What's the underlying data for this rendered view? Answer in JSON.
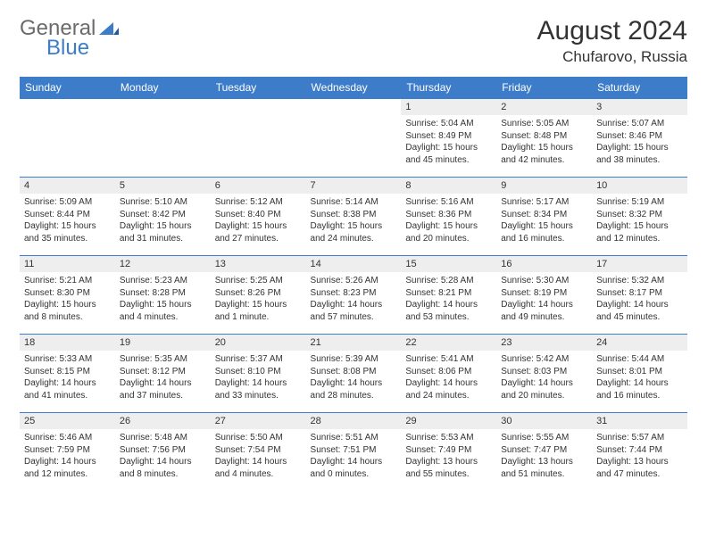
{
  "brand": {
    "part1": "General",
    "part2": "Blue"
  },
  "title": "August 2024",
  "location": "Chufarovo, Russia",
  "colors": {
    "accent": "#3d7cc9",
    "header_text": "#ffffff",
    "daynum_bg": "#eeeeee",
    "text": "#333333",
    "logo_gray": "#6b6b6b"
  },
  "weekdays": [
    "Sunday",
    "Monday",
    "Tuesday",
    "Wednesday",
    "Thursday",
    "Friday",
    "Saturday"
  ],
  "weeks": [
    [
      {
        "blank": true
      },
      {
        "blank": true
      },
      {
        "blank": true
      },
      {
        "blank": true
      },
      {
        "day": "1",
        "sunrise": "Sunrise: 5:04 AM",
        "sunset": "Sunset: 8:49 PM",
        "daylight": "Daylight: 15 hours and 45 minutes."
      },
      {
        "day": "2",
        "sunrise": "Sunrise: 5:05 AM",
        "sunset": "Sunset: 8:48 PM",
        "daylight": "Daylight: 15 hours and 42 minutes."
      },
      {
        "day": "3",
        "sunrise": "Sunrise: 5:07 AM",
        "sunset": "Sunset: 8:46 PM",
        "daylight": "Daylight: 15 hours and 38 minutes."
      }
    ],
    [
      {
        "day": "4",
        "sunrise": "Sunrise: 5:09 AM",
        "sunset": "Sunset: 8:44 PM",
        "daylight": "Daylight: 15 hours and 35 minutes."
      },
      {
        "day": "5",
        "sunrise": "Sunrise: 5:10 AM",
        "sunset": "Sunset: 8:42 PM",
        "daylight": "Daylight: 15 hours and 31 minutes."
      },
      {
        "day": "6",
        "sunrise": "Sunrise: 5:12 AM",
        "sunset": "Sunset: 8:40 PM",
        "daylight": "Daylight: 15 hours and 27 minutes."
      },
      {
        "day": "7",
        "sunrise": "Sunrise: 5:14 AM",
        "sunset": "Sunset: 8:38 PM",
        "daylight": "Daylight: 15 hours and 24 minutes."
      },
      {
        "day": "8",
        "sunrise": "Sunrise: 5:16 AM",
        "sunset": "Sunset: 8:36 PM",
        "daylight": "Daylight: 15 hours and 20 minutes."
      },
      {
        "day": "9",
        "sunrise": "Sunrise: 5:17 AM",
        "sunset": "Sunset: 8:34 PM",
        "daylight": "Daylight: 15 hours and 16 minutes."
      },
      {
        "day": "10",
        "sunrise": "Sunrise: 5:19 AM",
        "sunset": "Sunset: 8:32 PM",
        "daylight": "Daylight: 15 hours and 12 minutes."
      }
    ],
    [
      {
        "day": "11",
        "sunrise": "Sunrise: 5:21 AM",
        "sunset": "Sunset: 8:30 PM",
        "daylight": "Daylight: 15 hours and 8 minutes."
      },
      {
        "day": "12",
        "sunrise": "Sunrise: 5:23 AM",
        "sunset": "Sunset: 8:28 PM",
        "daylight": "Daylight: 15 hours and 4 minutes."
      },
      {
        "day": "13",
        "sunrise": "Sunrise: 5:25 AM",
        "sunset": "Sunset: 8:26 PM",
        "daylight": "Daylight: 15 hours and 1 minute."
      },
      {
        "day": "14",
        "sunrise": "Sunrise: 5:26 AM",
        "sunset": "Sunset: 8:23 PM",
        "daylight": "Daylight: 14 hours and 57 minutes."
      },
      {
        "day": "15",
        "sunrise": "Sunrise: 5:28 AM",
        "sunset": "Sunset: 8:21 PM",
        "daylight": "Daylight: 14 hours and 53 minutes."
      },
      {
        "day": "16",
        "sunrise": "Sunrise: 5:30 AM",
        "sunset": "Sunset: 8:19 PM",
        "daylight": "Daylight: 14 hours and 49 minutes."
      },
      {
        "day": "17",
        "sunrise": "Sunrise: 5:32 AM",
        "sunset": "Sunset: 8:17 PM",
        "daylight": "Daylight: 14 hours and 45 minutes."
      }
    ],
    [
      {
        "day": "18",
        "sunrise": "Sunrise: 5:33 AM",
        "sunset": "Sunset: 8:15 PM",
        "daylight": "Daylight: 14 hours and 41 minutes."
      },
      {
        "day": "19",
        "sunrise": "Sunrise: 5:35 AM",
        "sunset": "Sunset: 8:12 PM",
        "daylight": "Daylight: 14 hours and 37 minutes."
      },
      {
        "day": "20",
        "sunrise": "Sunrise: 5:37 AM",
        "sunset": "Sunset: 8:10 PM",
        "daylight": "Daylight: 14 hours and 33 minutes."
      },
      {
        "day": "21",
        "sunrise": "Sunrise: 5:39 AM",
        "sunset": "Sunset: 8:08 PM",
        "daylight": "Daylight: 14 hours and 28 minutes."
      },
      {
        "day": "22",
        "sunrise": "Sunrise: 5:41 AM",
        "sunset": "Sunset: 8:06 PM",
        "daylight": "Daylight: 14 hours and 24 minutes."
      },
      {
        "day": "23",
        "sunrise": "Sunrise: 5:42 AM",
        "sunset": "Sunset: 8:03 PM",
        "daylight": "Daylight: 14 hours and 20 minutes."
      },
      {
        "day": "24",
        "sunrise": "Sunrise: 5:44 AM",
        "sunset": "Sunset: 8:01 PM",
        "daylight": "Daylight: 14 hours and 16 minutes."
      }
    ],
    [
      {
        "day": "25",
        "sunrise": "Sunrise: 5:46 AM",
        "sunset": "Sunset: 7:59 PM",
        "daylight": "Daylight: 14 hours and 12 minutes."
      },
      {
        "day": "26",
        "sunrise": "Sunrise: 5:48 AM",
        "sunset": "Sunset: 7:56 PM",
        "daylight": "Daylight: 14 hours and 8 minutes."
      },
      {
        "day": "27",
        "sunrise": "Sunrise: 5:50 AM",
        "sunset": "Sunset: 7:54 PM",
        "daylight": "Daylight: 14 hours and 4 minutes."
      },
      {
        "day": "28",
        "sunrise": "Sunrise: 5:51 AM",
        "sunset": "Sunset: 7:51 PM",
        "daylight": "Daylight: 14 hours and 0 minutes."
      },
      {
        "day": "29",
        "sunrise": "Sunrise: 5:53 AM",
        "sunset": "Sunset: 7:49 PM",
        "daylight": "Daylight: 13 hours and 55 minutes."
      },
      {
        "day": "30",
        "sunrise": "Sunrise: 5:55 AM",
        "sunset": "Sunset: 7:47 PM",
        "daylight": "Daylight: 13 hours and 51 minutes."
      },
      {
        "day": "31",
        "sunrise": "Sunrise: 5:57 AM",
        "sunset": "Sunset: 7:44 PM",
        "daylight": "Daylight: 13 hours and 47 minutes."
      }
    ]
  ]
}
